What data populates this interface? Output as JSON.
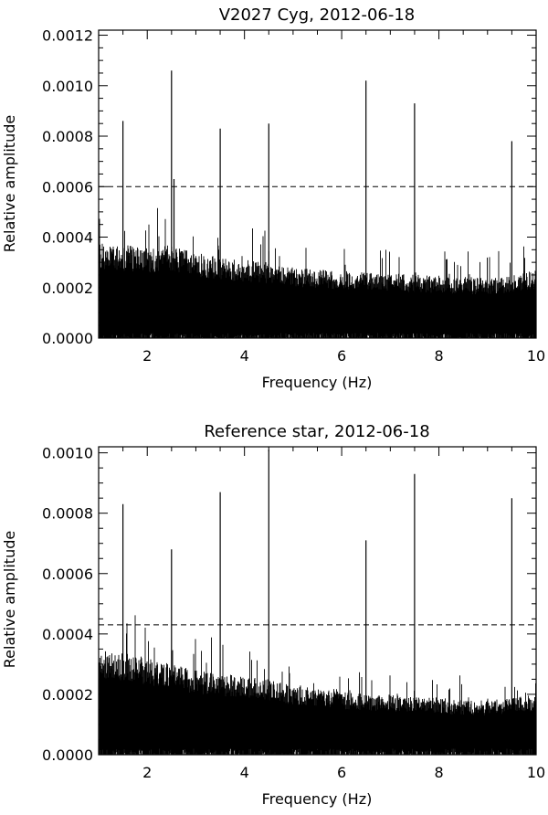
{
  "chart_data": [
    {
      "type": "line",
      "title": "V2027 Cyg, 2012-06-18",
      "xlabel": "Frequency (Hz)",
      "ylabel": "Relative amplitude",
      "xlim": [
        1,
        10
      ],
      "ylim": [
        0,
        0.00122
      ],
      "x_ticks": [
        2,
        4,
        6,
        8,
        10
      ],
      "x_tick_labels": [
        "2",
        "4",
        "6",
        "8",
        "10"
      ],
      "y_ticks": [
        0,
        0.0002,
        0.0004,
        0.0006,
        0.0008,
        0.001,
        0.0012
      ],
      "y_tick_labels": [
        "0.0000",
        "0.0002",
        "0.0004",
        "0.0006",
        "0.0008",
        "0.0010",
        "0.0012"
      ],
      "threshold": 0.0006,
      "noise_envelope": {
        "x": [
          1,
          1.5,
          2,
          2.5,
          3,
          3.5,
          4,
          4.5,
          5,
          5.5,
          6,
          6.5,
          7,
          7.5,
          8,
          8.5,
          9,
          9.5,
          10
        ],
        "y": [
          0.00038,
          0.00037,
          0.00036,
          0.00037,
          0.00034,
          0.00032,
          0.00031,
          0.0003,
          0.00028,
          0.00027,
          0.00027,
          0.00026,
          0.00026,
          0.00025,
          0.00025,
          0.00024,
          0.00024,
          0.00025,
          0.00027
        ]
      },
      "peaks": [
        {
          "x": 1.5,
          "y": 0.00086
        },
        {
          "x": 2.5,
          "y": 0.00106
        },
        {
          "x": 2.55,
          "y": 0.00063
        },
        {
          "x": 3.5,
          "y": 0.00083
        },
        {
          "x": 4.5,
          "y": 0.00085
        },
        {
          "x": 6.5,
          "y": 0.00102
        },
        {
          "x": 7.5,
          "y": 0.00093
        },
        {
          "x": 9.5,
          "y": 0.00078
        }
      ]
    },
    {
      "type": "line",
      "title": "Reference star, 2012-06-18",
      "xlabel": "Frequency (Hz)",
      "ylabel": "Relative amplitude",
      "xlim": [
        1,
        10
      ],
      "ylim": [
        0,
        0.00102
      ],
      "x_ticks": [
        2,
        4,
        6,
        8,
        10
      ],
      "x_tick_labels": [
        "2",
        "4",
        "6",
        "8",
        "10"
      ],
      "y_ticks": [
        0,
        0.0002,
        0.0004,
        0.0006,
        0.0008,
        0.001
      ],
      "y_tick_labels": [
        "0.0000",
        "0.0002",
        "0.0004",
        "0.0006",
        "0.0008",
        "0.0010"
      ],
      "threshold": 0.00043,
      "noise_envelope": {
        "x": [
          1,
          1.5,
          2,
          2.5,
          3,
          3.5,
          4,
          4.5,
          5,
          5.5,
          6,
          6.5,
          7,
          7.5,
          8,
          8.5,
          9,
          9.5,
          10
        ],
        "y": [
          0.00035,
          0.00034,
          0.00032,
          0.0003,
          0.00028,
          0.00027,
          0.00026,
          0.00025,
          0.00023,
          0.00022,
          0.00021,
          0.0002,
          0.0002,
          0.00019,
          0.00019,
          0.00018,
          0.00018,
          0.00019,
          0.0002
        ]
      },
      "peaks": [
        {
          "x": 1.5,
          "y": 0.00083
        },
        {
          "x": 2.5,
          "y": 0.00068
        },
        {
          "x": 3.5,
          "y": 0.00087
        },
        {
          "x": 4.5,
          "y": 0.00101
        },
        {
          "x": 6.5,
          "y": 0.00071
        },
        {
          "x": 7.5,
          "y": 0.00093
        },
        {
          "x": 9.5,
          "y": 0.00085
        }
      ]
    }
  ]
}
